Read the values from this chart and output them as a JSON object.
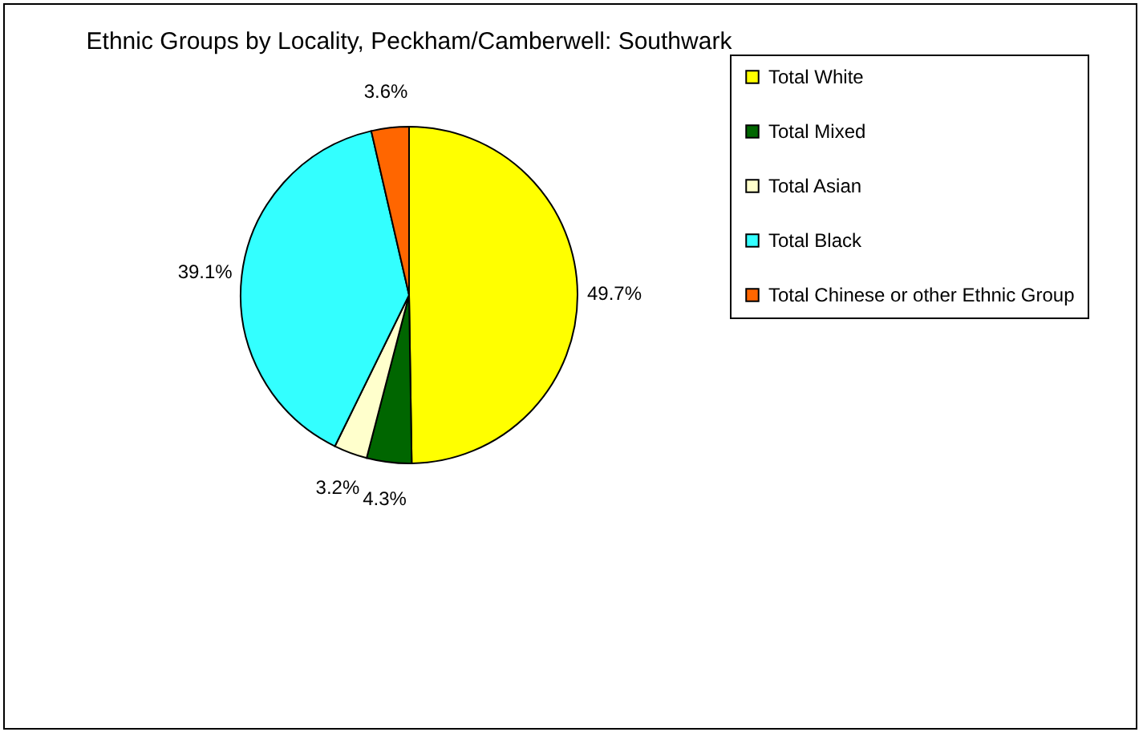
{
  "chart_data": {
    "type": "pie",
    "title": "Ethnic Groups by Locality, Peckham/Camberwell: Southwark",
    "categories": [
      "Total White",
      "Total Mixed",
      "Total Asian",
      "Total Black",
      "Total Chinese or other Ethnic Group"
    ],
    "values": [
      49.7,
      4.3,
      3.2,
      39.1,
      3.6
    ],
    "value_labels": [
      "49.7%",
      "4.3%",
      "3.2%",
      "39.1%",
      "3.6%"
    ],
    "colors": [
      "#ffff00",
      "#006600",
      "#ffffcc",
      "#33ffff",
      "#ff6600"
    ],
    "legend": "right"
  }
}
